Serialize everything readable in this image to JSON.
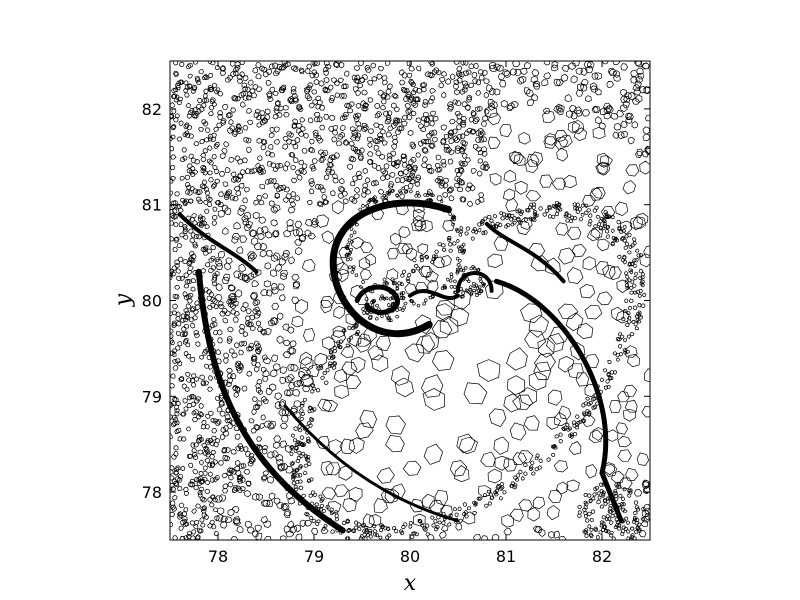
{
  "chart_data": {
    "type": "heatmap",
    "title": "",
    "xlabel": "x",
    "ylabel": "y",
    "xlim": [
      77.5,
      82.5
    ],
    "ylim": [
      77.5,
      82.5
    ],
    "xticks": [
      78,
      79,
      80,
      81,
      82
    ],
    "yticks": [
      78,
      79,
      80,
      81,
      82
    ],
    "xtick_labels": [
      "78",
      "79",
      "80",
      "81",
      "82"
    ],
    "ytick_labels": [
      "78",
      "79",
      "80",
      "81",
      "82"
    ],
    "grid": false,
    "legend": "none",
    "colors": {
      "background": "#ffffff",
      "mesh": "#000000"
    },
    "rendering": "voronoi-mesh"
  }
}
